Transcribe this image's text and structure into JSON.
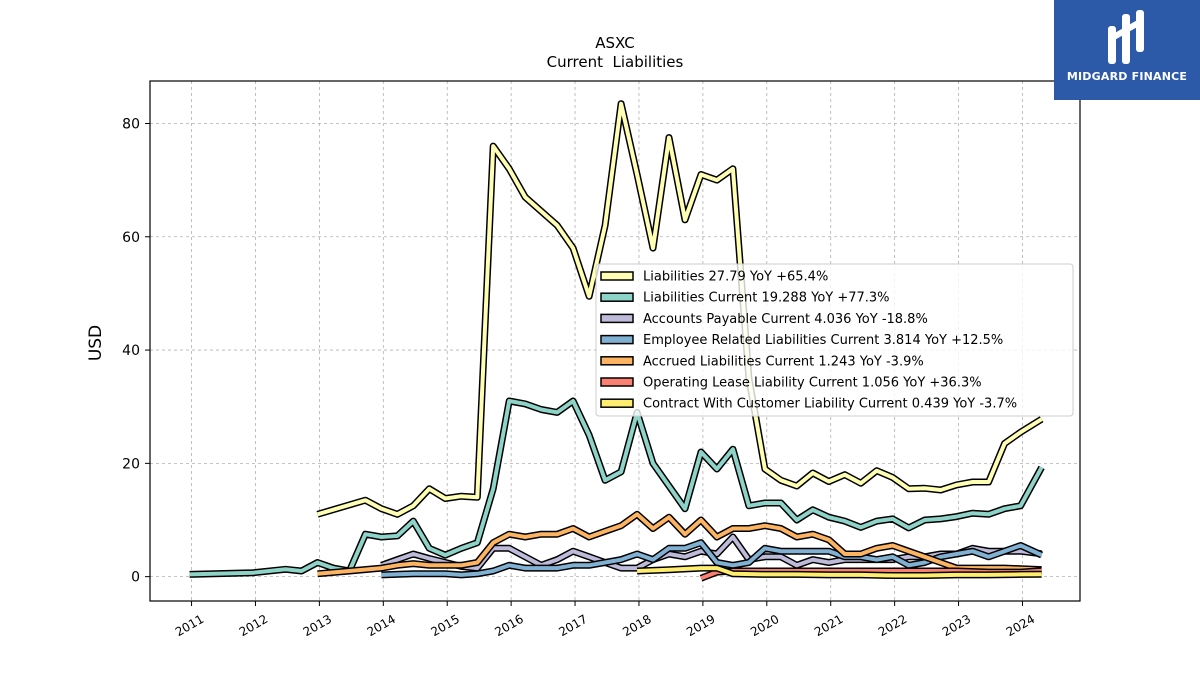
{
  "brand": {
    "name": "MIDGARD FINANCE",
    "bg": "#2d5aa8"
  },
  "chart_data": {
    "type": "line",
    "title": "ASXC",
    "subtitle": "Current  Liabilities",
    "ylabel": "USD",
    "xlabel": "",
    "xlim": [
      2010.35,
      2024.9
    ],
    "ylim": [
      -4.3,
      87.5
    ],
    "x_ticks": [
      "2011",
      "2012",
      "2013",
      "2014",
      "2015",
      "2016",
      "2017",
      "2018",
      "2019",
      "2020",
      "2021",
      "2022",
      "2023",
      "2024"
    ],
    "y_ticks": [
      0,
      20,
      40,
      60,
      80
    ],
    "grid": true,
    "legend_position": "center-right",
    "series": [
      {
        "name": "Liabilities",
        "legend": "Liabilities  27.79 YoY +65.4%",
        "color": "#ffffb3",
        "points": [
          [
            2012.97,
            11.0
          ],
          [
            2013.72,
            13.5
          ],
          [
            2013.97,
            12.0
          ],
          [
            2014.22,
            11.0
          ],
          [
            2014.47,
            12.5
          ],
          [
            2014.72,
            15.5
          ],
          [
            2014.97,
            13.8
          ],
          [
            2015.22,
            14.2
          ],
          [
            2015.47,
            14.0
          ],
          [
            2015.72,
            76.0
          ],
          [
            2015.97,
            72.0
          ],
          [
            2016.22,
            67.0
          ],
          [
            2016.47,
            64.5
          ],
          [
            2016.72,
            62.0
          ],
          [
            2016.97,
            58.0
          ],
          [
            2017.22,
            49.5
          ],
          [
            2017.47,
            62.0
          ],
          [
            2017.72,
            83.5
          ],
          [
            2017.97,
            71.0
          ],
          [
            2018.22,
            58.0
          ],
          [
            2018.47,
            77.5
          ],
          [
            2018.72,
            63.0
          ],
          [
            2018.97,
            71.0
          ],
          [
            2019.22,
            70.0
          ],
          [
            2019.47,
            72.0
          ],
          [
            2019.72,
            35.0
          ],
          [
            2019.97,
            19.0
          ],
          [
            2020.22,
            17.0
          ],
          [
            2020.47,
            16.0
          ],
          [
            2020.72,
            18.3
          ],
          [
            2020.97,
            16.8
          ],
          [
            2021.22,
            18.0
          ],
          [
            2021.47,
            16.5
          ],
          [
            2021.72,
            18.7
          ],
          [
            2021.97,
            17.5
          ],
          [
            2022.22,
            15.5
          ],
          [
            2022.47,
            15.6
          ],
          [
            2022.72,
            15.3
          ],
          [
            2022.97,
            16.2
          ],
          [
            2023.22,
            16.7
          ],
          [
            2023.47,
            16.7
          ],
          [
            2023.72,
            23.5
          ],
          [
            2023.97,
            25.5
          ],
          [
            2024.3,
            27.79
          ]
        ]
      },
      {
        "name": "Liabilities Current",
        "legend": "Liabilities Current  19.288 YoY +77.3%",
        "color": "#8dd3c7",
        "points": [
          [
            2010.97,
            0.4
          ],
          [
            2011.97,
            0.7
          ],
          [
            2012.47,
            1.3
          ],
          [
            2012.72,
            1.0
          ],
          [
            2012.97,
            2.5
          ],
          [
            2013.22,
            1.5
          ],
          [
            2013.47,
            1.0
          ],
          [
            2013.72,
            7.5
          ],
          [
            2013.97,
            7.0
          ],
          [
            2014.22,
            7.2
          ],
          [
            2014.47,
            9.8
          ],
          [
            2014.72,
            5.0
          ],
          [
            2014.97,
            3.8
          ],
          [
            2015.22,
            5.0
          ],
          [
            2015.47,
            6.0
          ],
          [
            2015.72,
            15.5
          ],
          [
            2015.97,
            31.0
          ],
          [
            2016.22,
            30.5
          ],
          [
            2016.47,
            29.5
          ],
          [
            2016.72,
            29.0
          ],
          [
            2016.97,
            31.0
          ],
          [
            2017.22,
            25.0
          ],
          [
            2017.47,
            17.0
          ],
          [
            2017.72,
            18.5
          ],
          [
            2017.97,
            29.0
          ],
          [
            2018.22,
            20.0
          ],
          [
            2018.47,
            16.0
          ],
          [
            2018.72,
            12.0
          ],
          [
            2018.97,
            22.0
          ],
          [
            2019.22,
            19.0
          ],
          [
            2019.47,
            22.5
          ],
          [
            2019.72,
            12.5
          ],
          [
            2019.97,
            13.0
          ],
          [
            2020.22,
            13.0
          ],
          [
            2020.47,
            10.0
          ],
          [
            2020.72,
            11.8
          ],
          [
            2020.97,
            10.5
          ],
          [
            2021.22,
            9.8
          ],
          [
            2021.47,
            8.7
          ],
          [
            2021.72,
            9.8
          ],
          [
            2021.97,
            10.2
          ],
          [
            2022.22,
            8.6
          ],
          [
            2022.47,
            10.0
          ],
          [
            2022.72,
            10.2
          ],
          [
            2022.97,
            10.6
          ],
          [
            2023.22,
            11.2
          ],
          [
            2023.47,
            11.0
          ],
          [
            2023.72,
            12.0
          ],
          [
            2023.97,
            12.5
          ],
          [
            2024.3,
            19.288
          ]
        ]
      },
      {
        "name": "Accounts Payable Current",
        "legend": "Accounts Payable Current  4.036 YoY -18.8%",
        "color": "#bebada",
        "points": [
          [
            2013.97,
            2.0
          ],
          [
            2014.22,
            3.0
          ],
          [
            2014.47,
            4.0
          ],
          [
            2014.72,
            3.2
          ],
          [
            2014.97,
            2.5
          ],
          [
            2015.22,
            1.8
          ],
          [
            2015.47,
            1.5
          ],
          [
            2015.72,
            5.0
          ],
          [
            2015.97,
            5.0
          ],
          [
            2016.22,
            3.5
          ],
          [
            2016.47,
            2.0
          ],
          [
            2016.72,
            3.0
          ],
          [
            2016.97,
            4.5
          ],
          [
            2017.22,
            3.5
          ],
          [
            2017.47,
            2.5
          ],
          [
            2017.72,
            1.5
          ],
          [
            2017.97,
            1.5
          ],
          [
            2018.22,
            3.0
          ],
          [
            2018.47,
            4.0
          ],
          [
            2018.72,
            3.5
          ],
          [
            2018.97,
            4.5
          ],
          [
            2019.22,
            4.0
          ],
          [
            2019.47,
            7.0
          ],
          [
            2019.72,
            3.0
          ],
          [
            2019.97,
            3.5
          ],
          [
            2020.22,
            3.5
          ],
          [
            2020.47,
            2.0
          ],
          [
            2020.72,
            3.0
          ],
          [
            2020.97,
            2.5
          ],
          [
            2021.22,
            3.0
          ],
          [
            2021.47,
            3.0
          ],
          [
            2021.72,
            3.0
          ],
          [
            2021.97,
            3.0
          ],
          [
            2022.22,
            3.5
          ],
          [
            2022.47,
            3.5
          ],
          [
            2022.72,
            4.0
          ],
          [
            2022.97,
            4.0
          ],
          [
            2023.22,
            5.0
          ],
          [
            2023.47,
            4.5
          ],
          [
            2023.72,
            4.5
          ],
          [
            2023.97,
            4.5
          ],
          [
            2024.3,
            4.036
          ]
        ]
      },
      {
        "name": "Employee Related Liabilities Current",
        "legend": "Employee Related Liabilities Current  3.814 YoY +12.5%",
        "color": "#80b1d3",
        "points": [
          [
            2013.97,
            0.3
          ],
          [
            2014.47,
            0.5
          ],
          [
            2014.97,
            0.5
          ],
          [
            2015.22,
            0.3
          ],
          [
            2015.47,
            0.5
          ],
          [
            2015.72,
            1.0
          ],
          [
            2015.97,
            2.0
          ],
          [
            2016.22,
            1.5
          ],
          [
            2016.47,
            1.5
          ],
          [
            2016.72,
            1.5
          ],
          [
            2016.97,
            2.0
          ],
          [
            2017.22,
            2.0
          ],
          [
            2017.47,
            2.5
          ],
          [
            2017.72,
            3.0
          ],
          [
            2017.97,
            4.0
          ],
          [
            2018.22,
            3.0
          ],
          [
            2018.47,
            5.0
          ],
          [
            2018.72,
            5.0
          ],
          [
            2018.97,
            6.0
          ],
          [
            2019.22,
            2.5
          ],
          [
            2019.47,
            2.0
          ],
          [
            2019.72,
            2.5
          ],
          [
            2019.97,
            5.0
          ],
          [
            2020.22,
            4.5
          ],
          [
            2020.47,
            4.5
          ],
          [
            2020.72,
            4.5
          ],
          [
            2020.97,
            4.5
          ],
          [
            2021.22,
            3.5
          ],
          [
            2021.47,
            3.5
          ],
          [
            2021.72,
            3.0
          ],
          [
            2021.97,
            3.5
          ],
          [
            2022.22,
            2.0
          ],
          [
            2022.47,
            2.5
          ],
          [
            2022.72,
            3.5
          ],
          [
            2022.97,
            4.0
          ],
          [
            2023.22,
            4.5
          ],
          [
            2023.47,
            3.5
          ],
          [
            2023.72,
            4.5
          ],
          [
            2023.97,
            5.5
          ],
          [
            2024.3,
            3.814
          ]
        ]
      },
      {
        "name": "Accrued Liabilities Current",
        "legend": "Accrued Liabilities Current  1.243 YoY -3.9%",
        "color": "#fdb462",
        "points": [
          [
            2012.97,
            0.5
          ],
          [
            2013.47,
            1.0
          ],
          [
            2013.97,
            1.5
          ],
          [
            2014.22,
            2.0
          ],
          [
            2014.47,
            2.3
          ],
          [
            2014.72,
            2.0
          ],
          [
            2014.97,
            2.0
          ],
          [
            2015.22,
            2.0
          ],
          [
            2015.47,
            2.5
          ],
          [
            2015.72,
            6.0
          ],
          [
            2015.97,
            7.5
          ],
          [
            2016.22,
            7.0
          ],
          [
            2016.47,
            7.5
          ],
          [
            2016.72,
            7.5
          ],
          [
            2016.97,
            8.5
          ],
          [
            2017.22,
            7.0
          ],
          [
            2017.47,
            8.0
          ],
          [
            2017.72,
            9.0
          ],
          [
            2017.97,
            11.0
          ],
          [
            2018.22,
            8.5
          ],
          [
            2018.47,
            10.5
          ],
          [
            2018.72,
            7.5
          ],
          [
            2018.97,
            10.0
          ],
          [
            2019.22,
            7.0
          ],
          [
            2019.47,
            8.5
          ],
          [
            2019.72,
            8.5
          ],
          [
            2019.97,
            9.0
          ],
          [
            2020.22,
            8.5
          ],
          [
            2020.47,
            7.0
          ],
          [
            2020.72,
            7.5
          ],
          [
            2020.97,
            6.5
          ],
          [
            2021.22,
            4.0
          ],
          [
            2021.47,
            4.0
          ],
          [
            2021.72,
            5.0
          ],
          [
            2021.97,
            5.5
          ],
          [
            2022.22,
            4.5
          ],
          [
            2022.47,
            3.5
          ],
          [
            2022.72,
            2.5
          ],
          [
            2022.97,
            1.5
          ],
          [
            2023.22,
            1.5
          ],
          [
            2023.47,
            1.5
          ],
          [
            2023.72,
            1.5
          ],
          [
            2023.97,
            1.4
          ],
          [
            2024.3,
            1.243
          ]
        ]
      },
      {
        "name": "Operating Lease Liability Current",
        "legend": "Operating Lease Liability Current  1.056 YoY +36.3%",
        "color": "#fb8072",
        "points": [
          [
            2018.97,
            -0.3
          ],
          [
            2019.22,
            0.8
          ],
          [
            2019.47,
            1.0
          ],
          [
            2019.72,
            1.0
          ],
          [
            2019.97,
            1.0
          ],
          [
            2020.47,
            1.0
          ],
          [
            2020.97,
            1.0
          ],
          [
            2021.47,
            1.0
          ],
          [
            2021.97,
            1.0
          ],
          [
            2022.47,
            1.0
          ],
          [
            2022.97,
            1.0
          ],
          [
            2023.47,
            0.8
          ],
          [
            2023.97,
            0.8
          ],
          [
            2024.3,
            1.056
          ]
        ]
      },
      {
        "name": "Contract With Customer Liability Current",
        "legend": "Contract With Customer Liability Current  0.439 YoY -3.7%",
        "color": "#ffed6f",
        "points": [
          [
            2017.97,
            1.0
          ],
          [
            2018.47,
            1.2
          ],
          [
            2018.97,
            1.5
          ],
          [
            2019.22,
            1.5
          ],
          [
            2019.47,
            0.5
          ],
          [
            2019.97,
            0.4
          ],
          [
            2020.47,
            0.4
          ],
          [
            2020.97,
            0.3
          ],
          [
            2021.47,
            0.3
          ],
          [
            2021.97,
            0.2
          ],
          [
            2022.47,
            0.2
          ],
          [
            2022.97,
            0.3
          ],
          [
            2023.47,
            0.3
          ],
          [
            2023.97,
            0.4
          ],
          [
            2024.3,
            0.439
          ]
        ]
      }
    ]
  }
}
